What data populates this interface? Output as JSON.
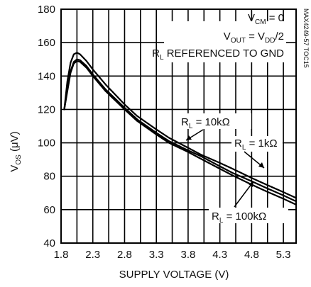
{
  "chart_data": {
    "type": "line",
    "xlabel": "SUPPLY VOLTAGE (V)",
    "ylabel": "V",
    "ylabel_sub": "OS",
    "ylabel_unit": " (μV)",
    "xlim": [
      1.8,
      5.5
    ],
    "ylim": [
      40,
      180
    ],
    "x_ticks": [
      "1.8",
      "2.3",
      "2.8",
      "3.3",
      "3.8",
      "4.3",
      "4.8",
      "5.3"
    ],
    "y_ticks": [
      "40",
      "60",
      "80",
      "100",
      "120",
      "140",
      "160",
      "180"
    ],
    "grid": true,
    "conditions": [
      {
        "main": "V",
        "sub": "CM",
        "rest": " = 0"
      },
      {
        "main": "V",
        "sub": "OUT",
        "rest": " = V",
        "sub2": "DD",
        "rest2": "/2"
      },
      {
        "main": "R",
        "sub": "L",
        "rest": " REFERENCED TO GND"
      }
    ],
    "side_label": "MAX4249-57 TOC15",
    "series": [
      {
        "name": "R_L = 10kΩ",
        "label_main": "R",
        "label_sub": "L",
        "label_rest": " = 10kΩ",
        "x": [
          1.85,
          1.9,
          1.95,
          2.0,
          2.05,
          2.1,
          2.2,
          2.3,
          2.5,
          2.8,
          3.0,
          3.3,
          3.5,
          3.8,
          4.0,
          4.3,
          4.5,
          4.8,
          5.0,
          5.3,
          5.5
        ],
        "y": [
          120,
          137,
          148,
          153,
          154,
          153,
          149,
          144,
          135,
          123,
          116,
          108,
          103,
          97,
          93,
          88,
          84.5,
          79,
          75.5,
          70.5,
          67
        ]
      },
      {
        "name": "R_L = 1kΩ",
        "label_main": "R",
        "label_sub": "L",
        "label_rest": " = 1kΩ",
        "x": [
          1.85,
          1.9,
          1.95,
          2.0,
          2.05,
          2.1,
          2.2,
          2.3,
          2.5,
          2.8,
          3.0,
          3.3,
          3.5,
          3.8,
          4.0,
          4.3,
          4.5,
          4.8,
          5.0,
          5.3,
          5.5
        ],
        "y": [
          120,
          132,
          143,
          148.5,
          150,
          149.5,
          146,
          141,
          132,
          121,
          114,
          106,
          101,
          95.5,
          92,
          86,
          82,
          77,
          73.5,
          68.5,
          65
        ]
      },
      {
        "name": "R_L = 100kΩ",
        "label_main": "R",
        "label_sub": "L",
        "label_rest": " = 100kΩ",
        "x": [
          1.85,
          1.9,
          1.95,
          2.0,
          2.05,
          2.1,
          2.2,
          2.3,
          2.5,
          2.8,
          3.0,
          3.3,
          3.5,
          3.8,
          4.0,
          4.3,
          4.5,
          4.8,
          5.0,
          5.3,
          5.5
        ],
        "y": [
          120,
          131,
          142,
          147.5,
          149,
          148.5,
          145,
          140,
          131,
          120,
          113,
          105,
          100,
          94.5,
          90.5,
          84.5,
          80.5,
          75,
          71.5,
          66.5,
          63
        ]
      }
    ]
  }
}
